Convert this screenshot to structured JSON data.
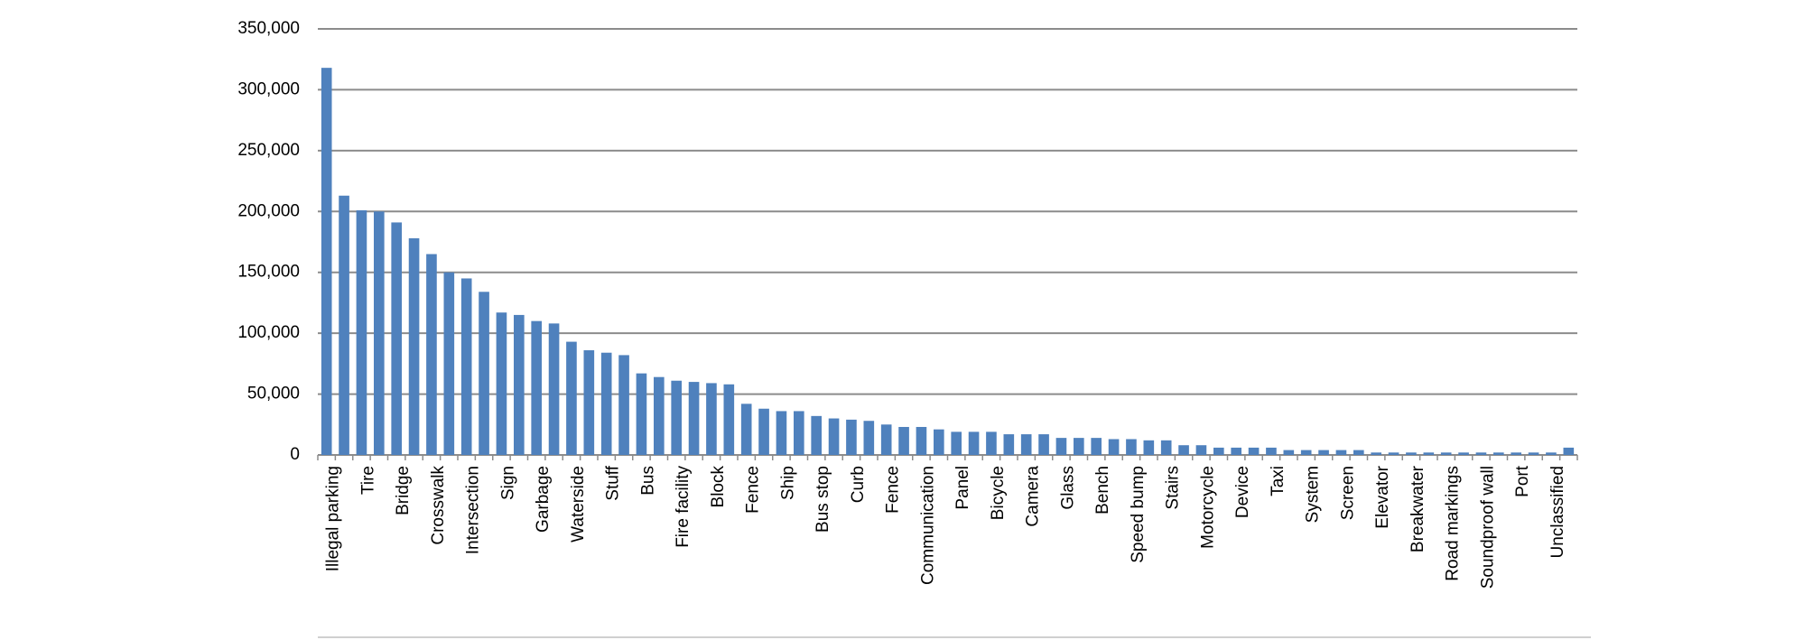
{
  "chart_data": {
    "type": "bar",
    "categories": [
      "Illegal parking",
      null,
      "Tire",
      null,
      "Bridge",
      null,
      "Crosswalk",
      null,
      "Intersection",
      null,
      "Sign",
      null,
      "Garbage",
      null,
      "Waterside",
      null,
      "Stuff",
      null,
      "Bus",
      null,
      "Fire facility",
      null,
      "Block",
      null,
      "Fence",
      null,
      "Ship",
      null,
      "Bus stop",
      null,
      "Curb",
      null,
      "Fence",
      null,
      "Communication",
      null,
      "Panel",
      null,
      "Bicycle",
      null,
      "Camera",
      null,
      "Glass",
      null,
      "Bench",
      null,
      "Speed bump",
      null,
      "Stairs",
      null,
      "Motorcycle",
      null,
      "Device",
      null,
      "Taxi",
      null,
      "System",
      null,
      "Screen",
      null,
      "Elevator",
      null,
      "Breakwater",
      null,
      "Road markings",
      null,
      "Soundproof wall",
      null,
      "Port",
      null,
      "Unclassified",
      null
    ],
    "values": [
      318000,
      213000,
      201000,
      200000,
      191000,
      178000,
      165000,
      150000,
      145000,
      134000,
      117000,
      115000,
      110000,
      108000,
      93000,
      86000,
      84000,
      82000,
      67000,
      64000,
      61000,
      60000,
      59000,
      58000,
      42000,
      38000,
      36000,
      36000,
      32000,
      30000,
      29000,
      28000,
      25000,
      23000,
      23000,
      21000,
      19000,
      19000,
      19000,
      17000,
      17000,
      17000,
      14000,
      14000,
      14000,
      13000,
      13000,
      12000,
      12000,
      8000,
      8000,
      6000,
      6000,
      6000,
      6000,
      4000,
      4000,
      4000,
      4000,
      4000,
      2000,
      2000,
      2000,
      2000,
      2000,
      2000,
      2000,
      2000,
      2000,
      2000,
      2000,
      6000
    ],
    "color": "#4f81bd",
    "ylim": [
      0,
      350000
    ],
    "yticks": [
      0,
      {
        "value": 50000,
        "label": "50,000"
      },
      {
        "value": 100000,
        "label": "100,000"
      },
      {
        "value": 150000,
        "label": "150,000"
      },
      {
        "value": 200000,
        "label": "200,000"
      },
      {
        "value": 250000,
        "label": "250,000"
      },
      {
        "value": 300000,
        "label": "300,000"
      },
      {
        "value": 350000,
        "label": "350,000"
      }
    ],
    "grid": true
  }
}
